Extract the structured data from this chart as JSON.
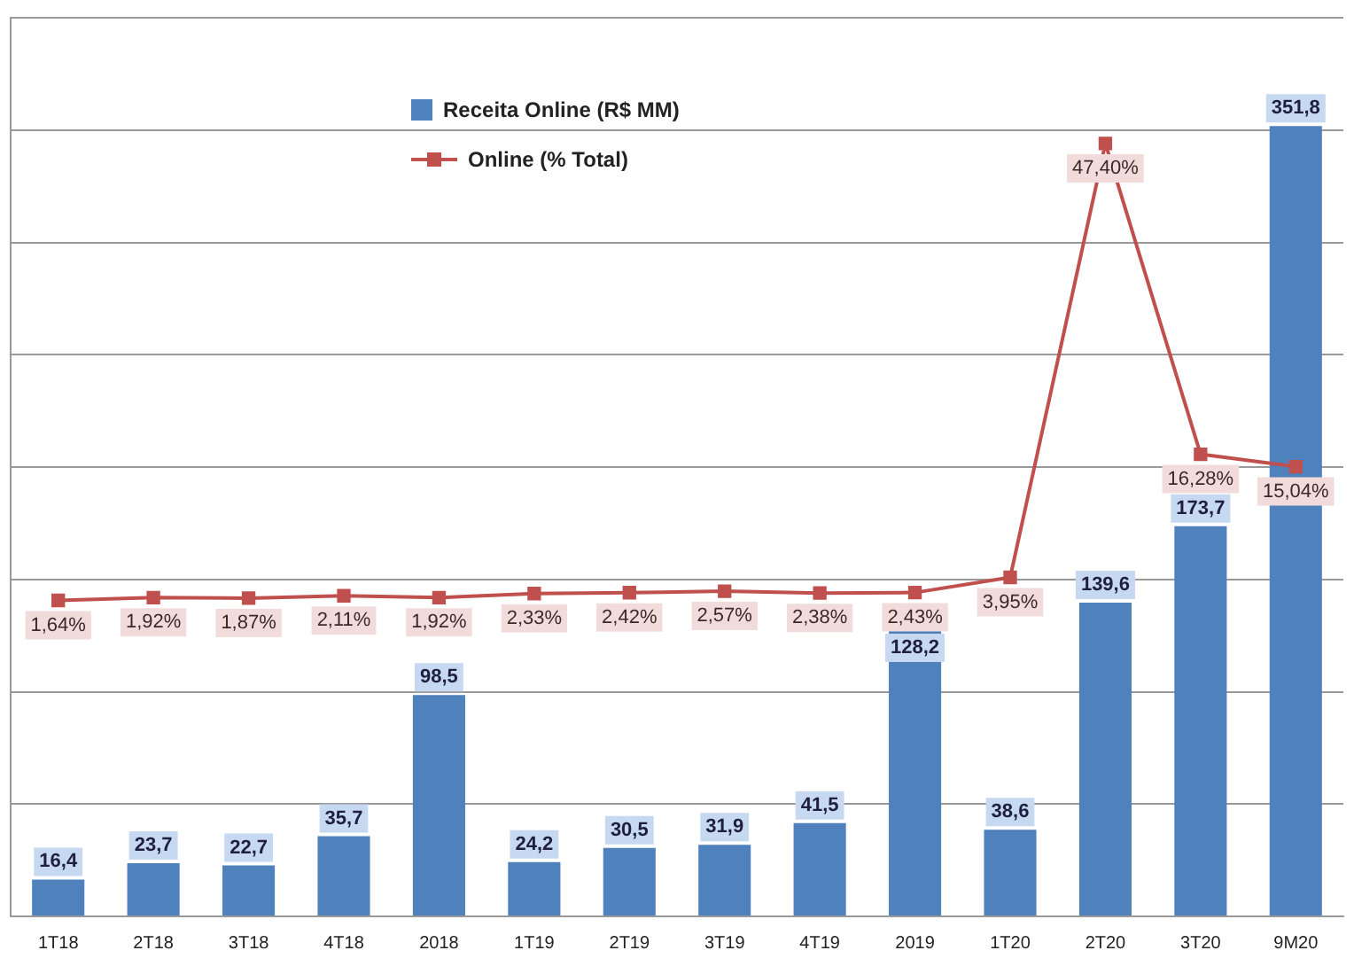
{
  "chart_data": {
    "type": "bar",
    "categories": [
      "1T18",
      "2T18",
      "3T18",
      "4T18",
      "2018",
      "1T19",
      "2T19",
      "3T19",
      "4T19",
      "2019",
      "1T20",
      "2T20",
      "3T20",
      "9M20"
    ],
    "series": [
      {
        "name": "Receita Online (R$ MM)",
        "color": "#4f81bd",
        "values": [
          16.4,
          23.7,
          22.7,
          35.7,
          98.5,
          24.2,
          30.5,
          31.9,
          41.5,
          128.2,
          38.6,
          139.6,
          173.7,
          351.8
        ],
        "value_labels": [
          "16,4",
          "23,7",
          "22,7",
          "35,7",
          "98,5",
          "24,2",
          "30,5",
          "31,9",
          "41,5",
          "128,2",
          "38,6",
          "139,6",
          "173,7",
          "351,8"
        ]
      },
      {
        "name": "Online (% Total)",
        "type": "line",
        "axis": "y2",
        "color": "#c0504d",
        "marker": "square",
        "values": [
          1.64,
          1.92,
          1.87,
          2.11,
          1.92,
          2.33,
          2.42,
          2.57,
          2.38,
          2.43,
          3.95,
          47.4,
          16.28,
          15.04
        ],
        "value_labels": [
          "1,64%",
          "1,92%",
          "1,87%",
          "2,11%",
          "1,92%",
          "2,33%",
          "2,42%",
          "2,57%",
          "2,38%",
          "2,43%",
          "3,95%",
          "47,40%",
          "16,28%",
          "15,04%"
        ]
      }
    ],
    "ylim": [
      0,
      400
    ],
    "yticks": [
      {
        "value": 0,
        "label": null
      },
      {
        "value": 50,
        "label": null
      },
      {
        "value": 100,
        "label": null
      },
      {
        "value": 150,
        "label": null
      },
      {
        "value": 200,
        "label": null
      },
      {
        "value": 250,
        "label": null
      },
      {
        "value": 300,
        "label": null
      },
      {
        "value": 350,
        "label": null
      },
      {
        "value": 400,
        "label": null
      }
    ],
    "y2lim": [
      -30,
      60
    ],
    "grid": "y",
    "legend": "top",
    "tick_labels": "x"
  }
}
